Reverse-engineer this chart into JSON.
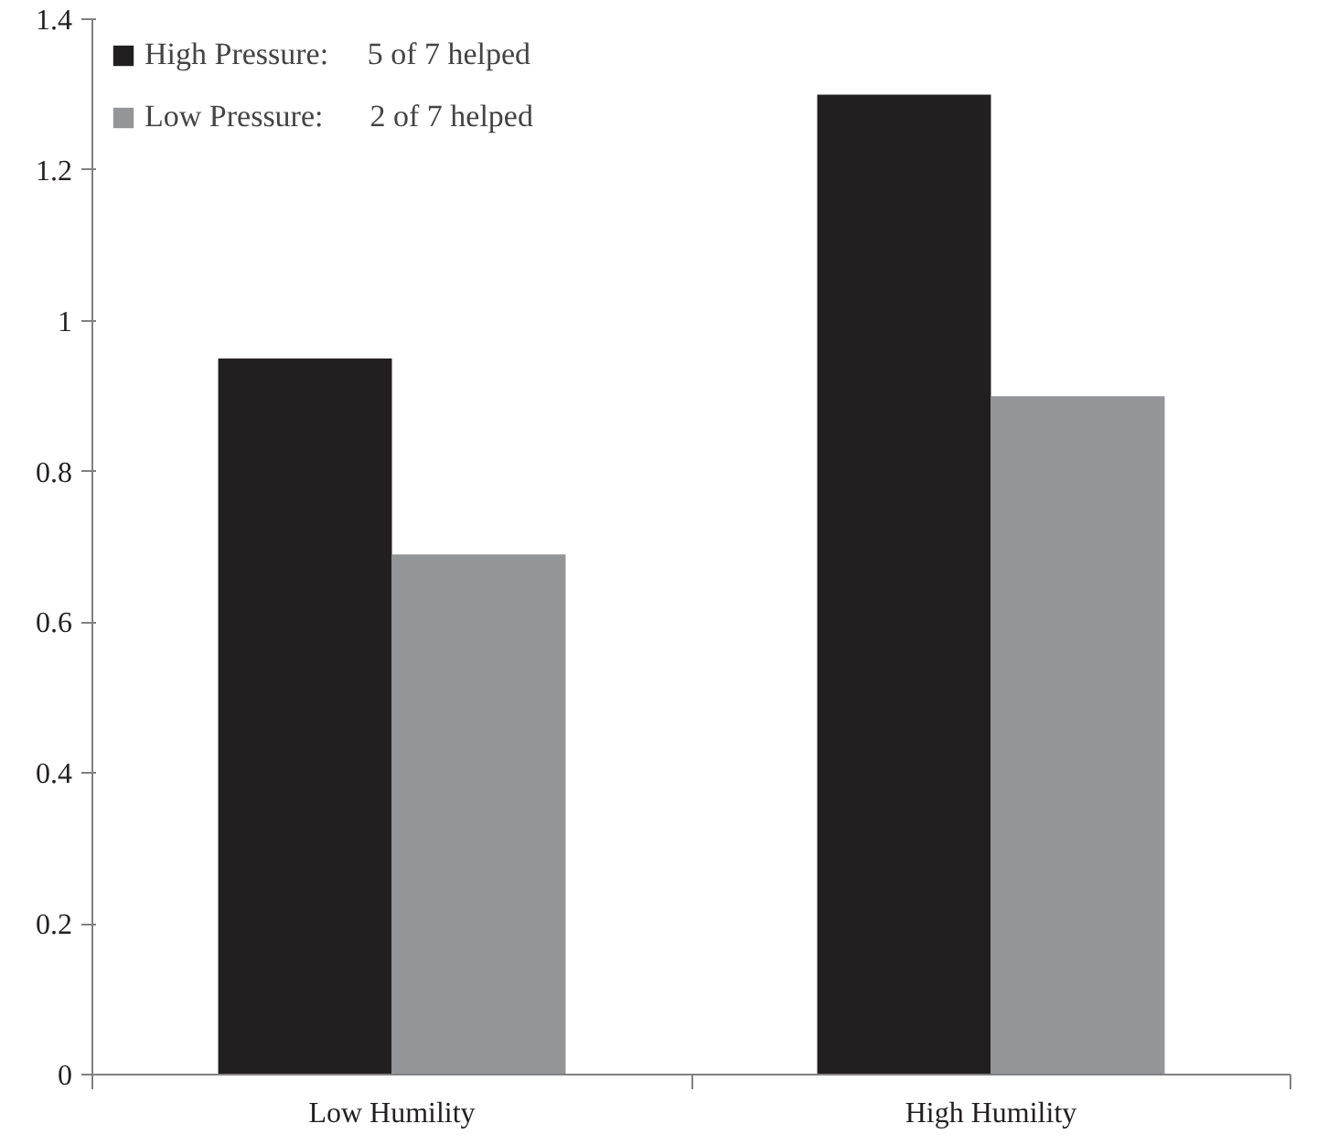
{
  "chart_data": {
    "type": "bar",
    "categories": [
      "Low Humility",
      "High Humility"
    ],
    "series": [
      {
        "name": "High Pressure:     5 of 7 helped",
        "color": "#231f20",
        "values": [
          0.95,
          1.3
        ]
      },
      {
        "name": "Low Pressure:      2 of 7 helped",
        "color": "#939598",
        "values": [
          0.69,
          0.9
        ]
      }
    ],
    "ylim": [
      0,
      1.4
    ],
    "yticks": [
      0,
      0.2,
      0.4,
      0.6,
      0.8,
      1,
      1.2,
      1.4
    ],
    "grid": false,
    "legend": "top left"
  }
}
